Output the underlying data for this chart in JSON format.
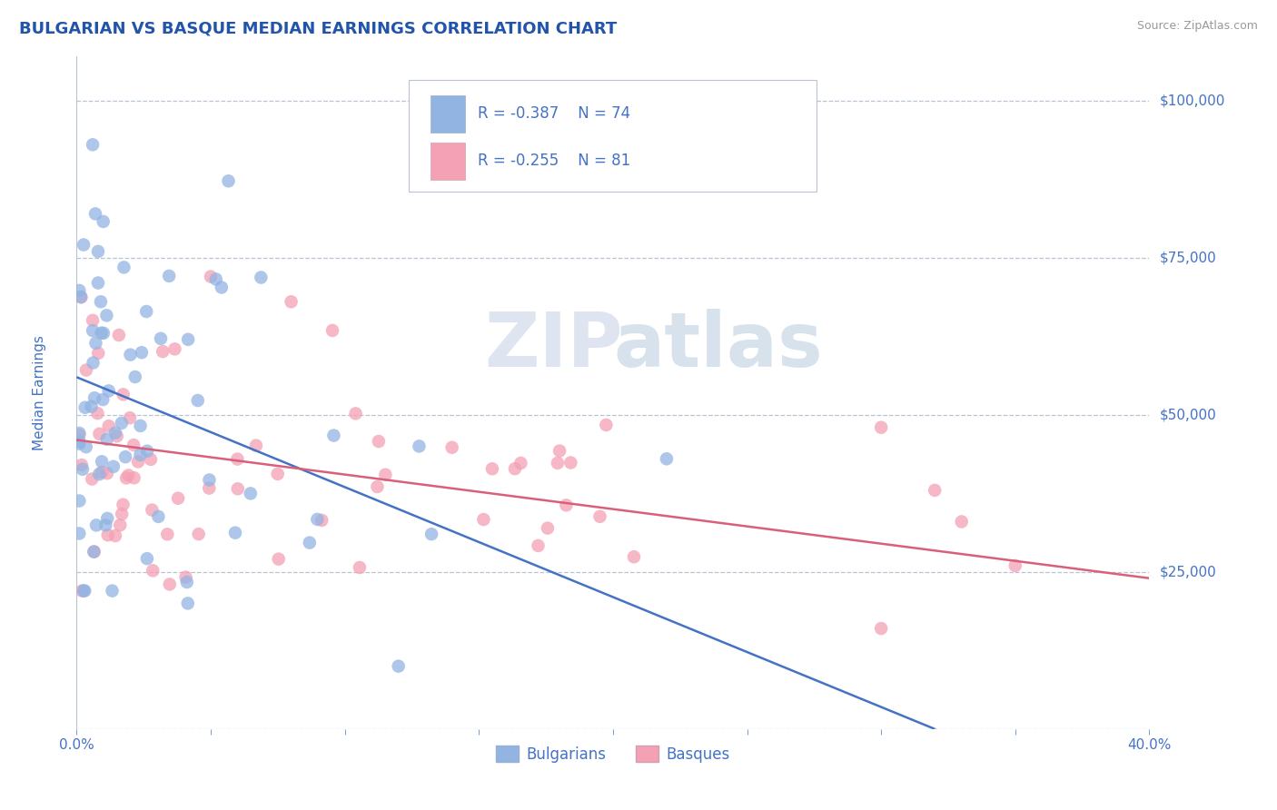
{
  "title": "BULGARIAN VS BASQUE MEDIAN EARNINGS CORRELATION CHART",
  "source": "Source: ZipAtlas.com",
  "ylabel": "Median Earnings",
  "xlim": [
    0.0,
    0.4
  ],
  "ylim": [
    0,
    107000
  ],
  "yticks": [
    0,
    25000,
    50000,
    75000,
    100000
  ],
  "ytick_labels": [
    "",
    "$25,000",
    "$50,000",
    "$75,000",
    "$100,000"
  ],
  "xtick_labels": [
    "0.0%",
    "40.0%"
  ],
  "blue_color": "#92b4e3",
  "pink_color": "#f4a0b5",
  "blue_line_color": "#4472c4",
  "pink_line_color": "#d9607a",
  "axis_color": "#4472c4",
  "title_color": "#2255aa",
  "grid_color": "#b8c4d4",
  "legend_R_blue": "R = -0.387",
  "legend_N_blue": "N = 74",
  "legend_R_pink": "R = -0.255",
  "legend_N_pink": "N = 81",
  "legend_label_blue": "Bulgarians",
  "legend_label_pink": "Basques",
  "watermark_zip": "ZIP",
  "watermark_atlas": "atlas",
  "bg_color": "#ffffff",
  "blue_n": 74,
  "pink_n": 81,
  "blue_intercept": 56000,
  "blue_slope": -175000,
  "pink_intercept": 46000,
  "pink_slope": -55000
}
